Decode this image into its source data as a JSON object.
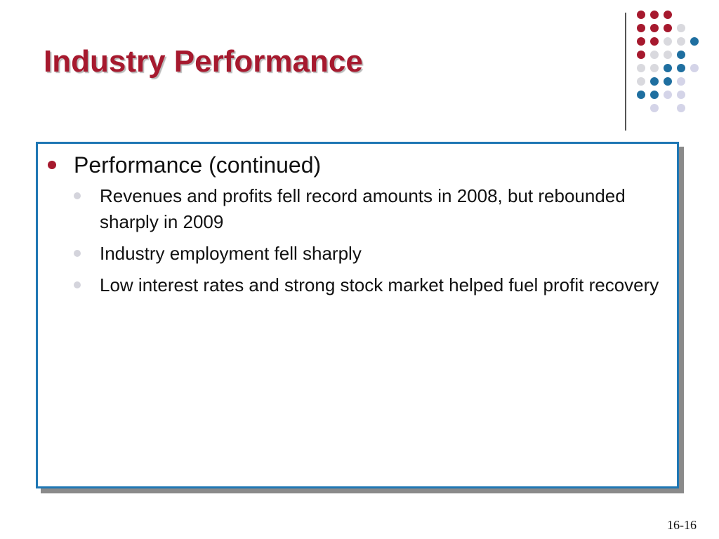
{
  "slide": {
    "title": "Industry Performance",
    "bullets": [
      {
        "text": "Performance (continued)",
        "sub": [
          {
            "text": "Revenues and profits fell record amounts in 2008, but rebounded sharply in 2009"
          },
          {
            "text": "Industry employment fell sharply"
          },
          {
            "text": "Low interest rates and strong stock market helped fuel profit recovery"
          }
        ]
      }
    ],
    "page_number": "16-16"
  },
  "colors": {
    "title": "#A6192E",
    "primary_bullet": "#A6192E",
    "content_border": "#1F77B4",
    "dot_red": "#A6192E",
    "dot_blue": "#1F6FA0",
    "dot_light": "#D9D9DE",
    "dot_lavender": "#D4D4E8"
  },
  "decoration": {
    "dot_grid": [
      [
        "red",
        "red",
        "red",
        "",
        ""
      ],
      [
        "red",
        "red",
        "red",
        "light",
        ""
      ],
      [
        "red",
        "red",
        "light",
        "light",
        "blue"
      ],
      [
        "red",
        "light",
        "light",
        "blue",
        ""
      ],
      [
        "light",
        "light",
        "blue",
        "blue",
        "lavender"
      ],
      [
        "light",
        "blue",
        "blue",
        "lavender",
        ""
      ],
      [
        "blue",
        "blue",
        "lavender",
        "lavender",
        ""
      ],
      [
        "",
        "lavender",
        "",
        "lavender",
        ""
      ]
    ]
  }
}
